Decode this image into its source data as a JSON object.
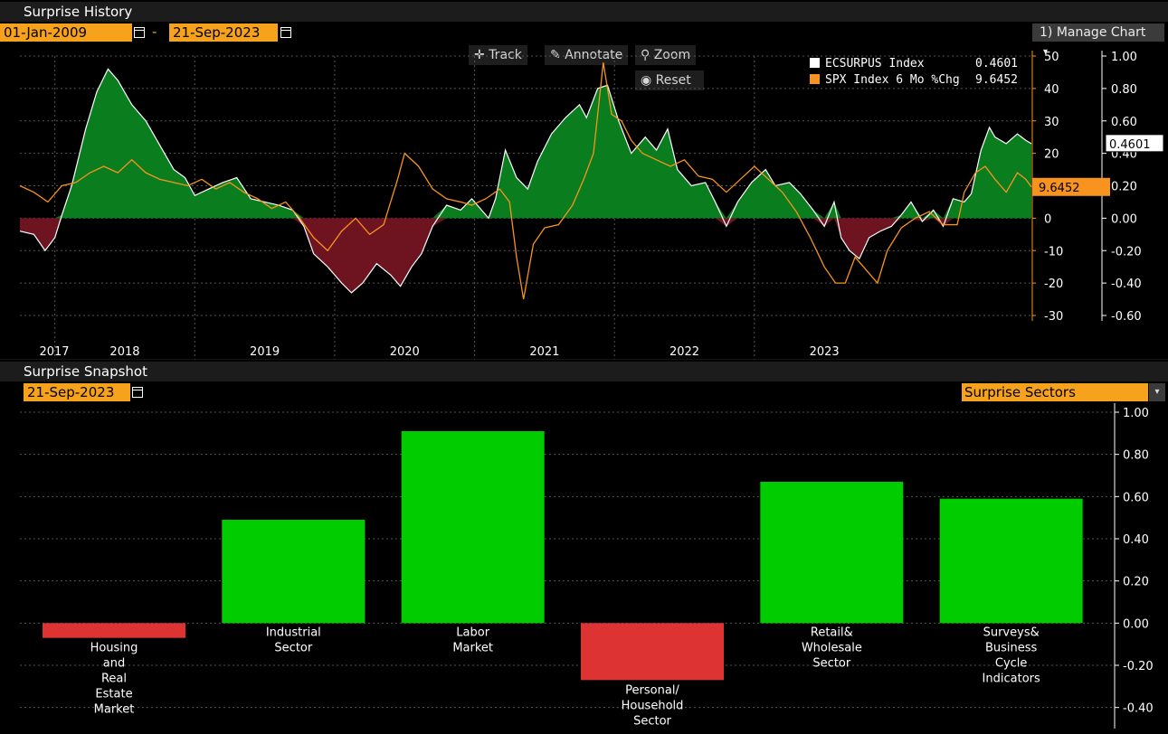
{
  "top_panel": {
    "title": "Surprise History",
    "start_date": "01-Jan-2009",
    "dash": "-",
    "end_date": "21-Sep-2023",
    "manage_chart": "1) Manage Chart",
    "manage_arrow": "▾",
    "tools": {
      "track": "Track",
      "annotate": "Annotate",
      "zoom": "Zoom",
      "reset": "Reset"
    },
    "legend": [
      {
        "name": "ECSURPUS Index",
        "value": "0.4601",
        "color": "#ffffff"
      },
      {
        "name": "SPX Index 6 Mo %Chg",
        "value": "9.6452",
        "color": "#f7931e"
      }
    ],
    "last_value_labels": {
      "ecsurpus": "0.4601",
      "spx": "9.6452"
    }
  },
  "bottom_panel": {
    "title": "Surprise Snapshot",
    "date": "21-Sep-2023",
    "selector": "Surprise Sectors",
    "selector_arrow": "▾"
  },
  "colors": {
    "positive_fill": "#0a7d1f",
    "negative_fill": "#6e1420",
    "spx_line": "#f7931e",
    "bar_positive": "#00cc00",
    "bar_negative": "#dd3333",
    "date_box": "#f6a21c"
  },
  "chart_data": [
    {
      "type": "area",
      "series": [
        {
          "name": "ECSURPUS Index",
          "axis": "right",
          "points": [
            [
              2016.75,
              -0.08
            ],
            [
              2016.85,
              -0.1
            ],
            [
              2016.93,
              -0.2
            ],
            [
              2017.0,
              -0.12
            ],
            [
              2017.05,
              0.02
            ],
            [
              2017.12,
              0.2
            ],
            [
              2017.22,
              0.55
            ],
            [
              2017.3,
              0.78
            ],
            [
              2017.38,
              0.92
            ],
            [
              2017.45,
              0.85
            ],
            [
              2017.55,
              0.7
            ],
            [
              2017.65,
              0.6
            ],
            [
              2017.75,
              0.45
            ],
            [
              2017.85,
              0.3
            ],
            [
              2017.93,
              0.25
            ],
            [
              2018.0,
              0.14
            ],
            [
              2018.1,
              0.18
            ],
            [
              2018.2,
              0.22
            ],
            [
              2018.3,
              0.25
            ],
            [
              2018.4,
              0.12
            ],
            [
              2018.5,
              0.1
            ],
            [
              2018.6,
              0.08
            ],
            [
              2018.7,
              0.05
            ],
            [
              2018.78,
              -0.05
            ],
            [
              2018.85,
              -0.22
            ],
            [
              2018.95,
              -0.3
            ],
            [
              2019.05,
              -0.4
            ],
            [
              2019.12,
              -0.46
            ],
            [
              2019.2,
              -0.4
            ],
            [
              2019.3,
              -0.28
            ],
            [
              2019.4,
              -0.35
            ],
            [
              2019.47,
              -0.42
            ],
            [
              2019.55,
              -0.3
            ],
            [
              2019.62,
              -0.22
            ],
            [
              2019.7,
              -0.05
            ],
            [
              2019.8,
              0.08
            ],
            [
              2019.9,
              0.05
            ],
            [
              2019.98,
              0.12
            ],
            [
              2020.05,
              0.05
            ],
            [
              2020.1,
              0.0
            ],
            [
              2020.15,
              0.12
            ],
            [
              2020.22,
              0.42
            ],
            [
              2020.3,
              0.25
            ],
            [
              2020.38,
              0.18
            ],
            [
              2020.45,
              0.35
            ],
            [
              2020.55,
              0.52
            ],
            [
              2020.65,
              0.62
            ],
            [
              2020.75,
              0.7
            ],
            [
              2020.8,
              0.62
            ],
            [
              2020.88,
              0.8
            ],
            [
              2020.95,
              0.82
            ],
            [
              2021.03,
              0.6
            ],
            [
              2021.12,
              0.4
            ],
            [
              2021.22,
              0.5
            ],
            [
              2021.3,
              0.42
            ],
            [
              2021.38,
              0.55
            ],
            [
              2021.45,
              0.3
            ],
            [
              2021.55,
              0.2
            ],
            [
              2021.65,
              0.22
            ],
            [
              2021.72,
              0.1
            ],
            [
              2021.8,
              -0.05
            ],
            [
              2021.88,
              0.1
            ],
            [
              2021.98,
              0.22
            ],
            [
              2022.08,
              0.3
            ],
            [
              2022.15,
              0.2
            ],
            [
              2022.25,
              0.22
            ],
            [
              2022.33,
              0.15
            ],
            [
              2022.42,
              0.05
            ],
            [
              2022.5,
              -0.05
            ],
            [
              2022.57,
              0.1
            ],
            [
              2022.62,
              -0.12
            ],
            [
              2022.68,
              -0.2
            ],
            [
              2022.75,
              -0.25
            ],
            [
              2022.82,
              -0.12
            ],
            [
              2022.9,
              -0.08
            ],
            [
              2022.98,
              -0.05
            ],
            [
              2023.05,
              0.02
            ],
            [
              2023.12,
              0.1
            ],
            [
              2023.2,
              -0.02
            ],
            [
              2023.28,
              0.05
            ],
            [
              2023.35,
              -0.05
            ],
            [
              2023.42,
              0.12
            ],
            [
              2023.5,
              0.1
            ],
            [
              2023.55,
              0.15
            ],
            [
              2023.62,
              0.42
            ],
            [
              2023.68,
              0.56
            ],
            [
              2023.72,
              0.5
            ],
            [
              2023.8,
              0.46
            ],
            [
              2023.88,
              0.52
            ],
            [
              2023.94,
              0.48
            ],
            [
              2023.98,
              0.46
            ]
          ]
        },
        {
          "name": "SPX Index 6 Mo %Chg",
          "axis": "left",
          "points": [
            [
              2016.75,
              10
            ],
            [
              2016.85,
              8
            ],
            [
              2016.95,
              5
            ],
            [
              2017.05,
              10
            ],
            [
              2017.15,
              11
            ],
            [
              2017.25,
              14
            ],
            [
              2017.35,
              16
            ],
            [
              2017.45,
              14
            ],
            [
              2017.55,
              18
            ],
            [
              2017.65,
              14
            ],
            [
              2017.75,
              12
            ],
            [
              2017.85,
              11
            ],
            [
              2017.95,
              10
            ],
            [
              2018.05,
              12
            ],
            [
              2018.15,
              9
            ],
            [
              2018.25,
              11
            ],
            [
              2018.35,
              8
            ],
            [
              2018.45,
              6
            ],
            [
              2018.55,
              3
            ],
            [
              2018.65,
              5
            ],
            [
              2018.75,
              0
            ],
            [
              2018.85,
              -6
            ],
            [
              2018.95,
              -10
            ],
            [
              2019.05,
              -4
            ],
            [
              2019.15,
              0
            ],
            [
              2019.25,
              -5
            ],
            [
              2019.35,
              -2
            ],
            [
              2019.45,
              12
            ],
            [
              2019.5,
              20
            ],
            [
              2019.6,
              16
            ],
            [
              2019.7,
              9
            ],
            [
              2019.8,
              6
            ],
            [
              2019.9,
              5
            ],
            [
              2019.98,
              4
            ],
            [
              2020.08,
              6
            ],
            [
              2020.18,
              9
            ],
            [
              2020.25,
              5
            ],
            [
              2020.3,
              -12
            ],
            [
              2020.35,
              -25
            ],
            [
              2020.42,
              -8
            ],
            [
              2020.5,
              -3
            ],
            [
              2020.6,
              -2
            ],
            [
              2020.7,
              4
            ],
            [
              2020.78,
              12
            ],
            [
              2020.85,
              20
            ],
            [
              2020.92,
              48
            ],
            [
              2020.98,
              32
            ],
            [
              2021.05,
              30
            ],
            [
              2021.12,
              24
            ],
            [
              2021.2,
              20
            ],
            [
              2021.3,
              18
            ],
            [
              2021.4,
              16
            ],
            [
              2021.5,
              18
            ],
            [
              2021.6,
              13
            ],
            [
              2021.7,
              12
            ],
            [
              2021.8,
              8
            ],
            [
              2021.9,
              12
            ],
            [
              2022.0,
              16
            ],
            [
              2022.1,
              12
            ],
            [
              2022.2,
              8
            ],
            [
              2022.3,
              2
            ],
            [
              2022.4,
              -6
            ],
            [
              2022.5,
              -15
            ],
            [
              2022.58,
              -20
            ],
            [
              2022.65,
              -20
            ],
            [
              2022.72,
              -12
            ],
            [
              2022.8,
              -16
            ],
            [
              2022.88,
              -20
            ],
            [
              2022.95,
              -10
            ],
            [
              2023.05,
              -3
            ],
            [
              2023.15,
              0
            ],
            [
              2023.25,
              2
            ],
            [
              2023.35,
              -2
            ],
            [
              2023.45,
              -2
            ],
            [
              2023.5,
              8
            ],
            [
              2023.58,
              14
            ],
            [
              2023.65,
              16
            ],
            [
              2023.72,
              12
            ],
            [
              2023.8,
              8
            ],
            [
              2023.88,
              14
            ],
            [
              2023.94,
              12
            ],
            [
              2023.98,
              9.6452
            ]
          ]
        }
      ],
      "x_labels": [
        "2017",
        "2018",
        "2019",
        "2020",
        "2021",
        "2022",
        "2023"
      ],
      "x_label_positions": [
        2016.8,
        2017.5,
        2018.5,
        2019.5,
        2020.5,
        2021.5,
        2022.5
      ],
      "x_tick_years": [
        2017,
        2018,
        2019,
        2020,
        2021,
        2022
      ],
      "x_range": [
        2016.75,
        2023.98
      ],
      "y_left": {
        "ticks": [
          "50",
          "40",
          "30",
          "20",
          "10",
          "0",
          "-10",
          "-20",
          "-30"
        ],
        "range": [
          -30,
          50
        ]
      },
      "y_right": {
        "ticks": [
          "1.00",
          "0.80",
          "0.60",
          "0.40",
          "0.20",
          "0.00",
          "-0.20",
          "-0.40",
          "-0.60"
        ],
        "range": [
          -0.6,
          1.0
        ]
      },
      "grid": true
    },
    {
      "type": "bar",
      "categories": [
        [
          "Housing",
          "and",
          "Real",
          "Estate",
          "Market"
        ],
        [
          "Industrial",
          "Sector"
        ],
        [
          "Labor",
          "Market"
        ],
        [
          "Personal/",
          "Household",
          "Sector"
        ],
        [
          "Retail&",
          "Wholesale",
          "Sector"
        ],
        [
          "Surveys&",
          "Business",
          "Cycle",
          "Indicators"
        ]
      ],
      "values": [
        -0.07,
        0.49,
        0.91,
        -0.27,
        0.67,
        0.59
      ],
      "y_ticks": [
        "1.00",
        "0.80",
        "0.60",
        "0.40",
        "0.20",
        "0.00",
        "-0.20",
        "-0.40"
      ],
      "ylim": [
        -0.5,
        1.0
      ],
      "grid": true
    }
  ]
}
